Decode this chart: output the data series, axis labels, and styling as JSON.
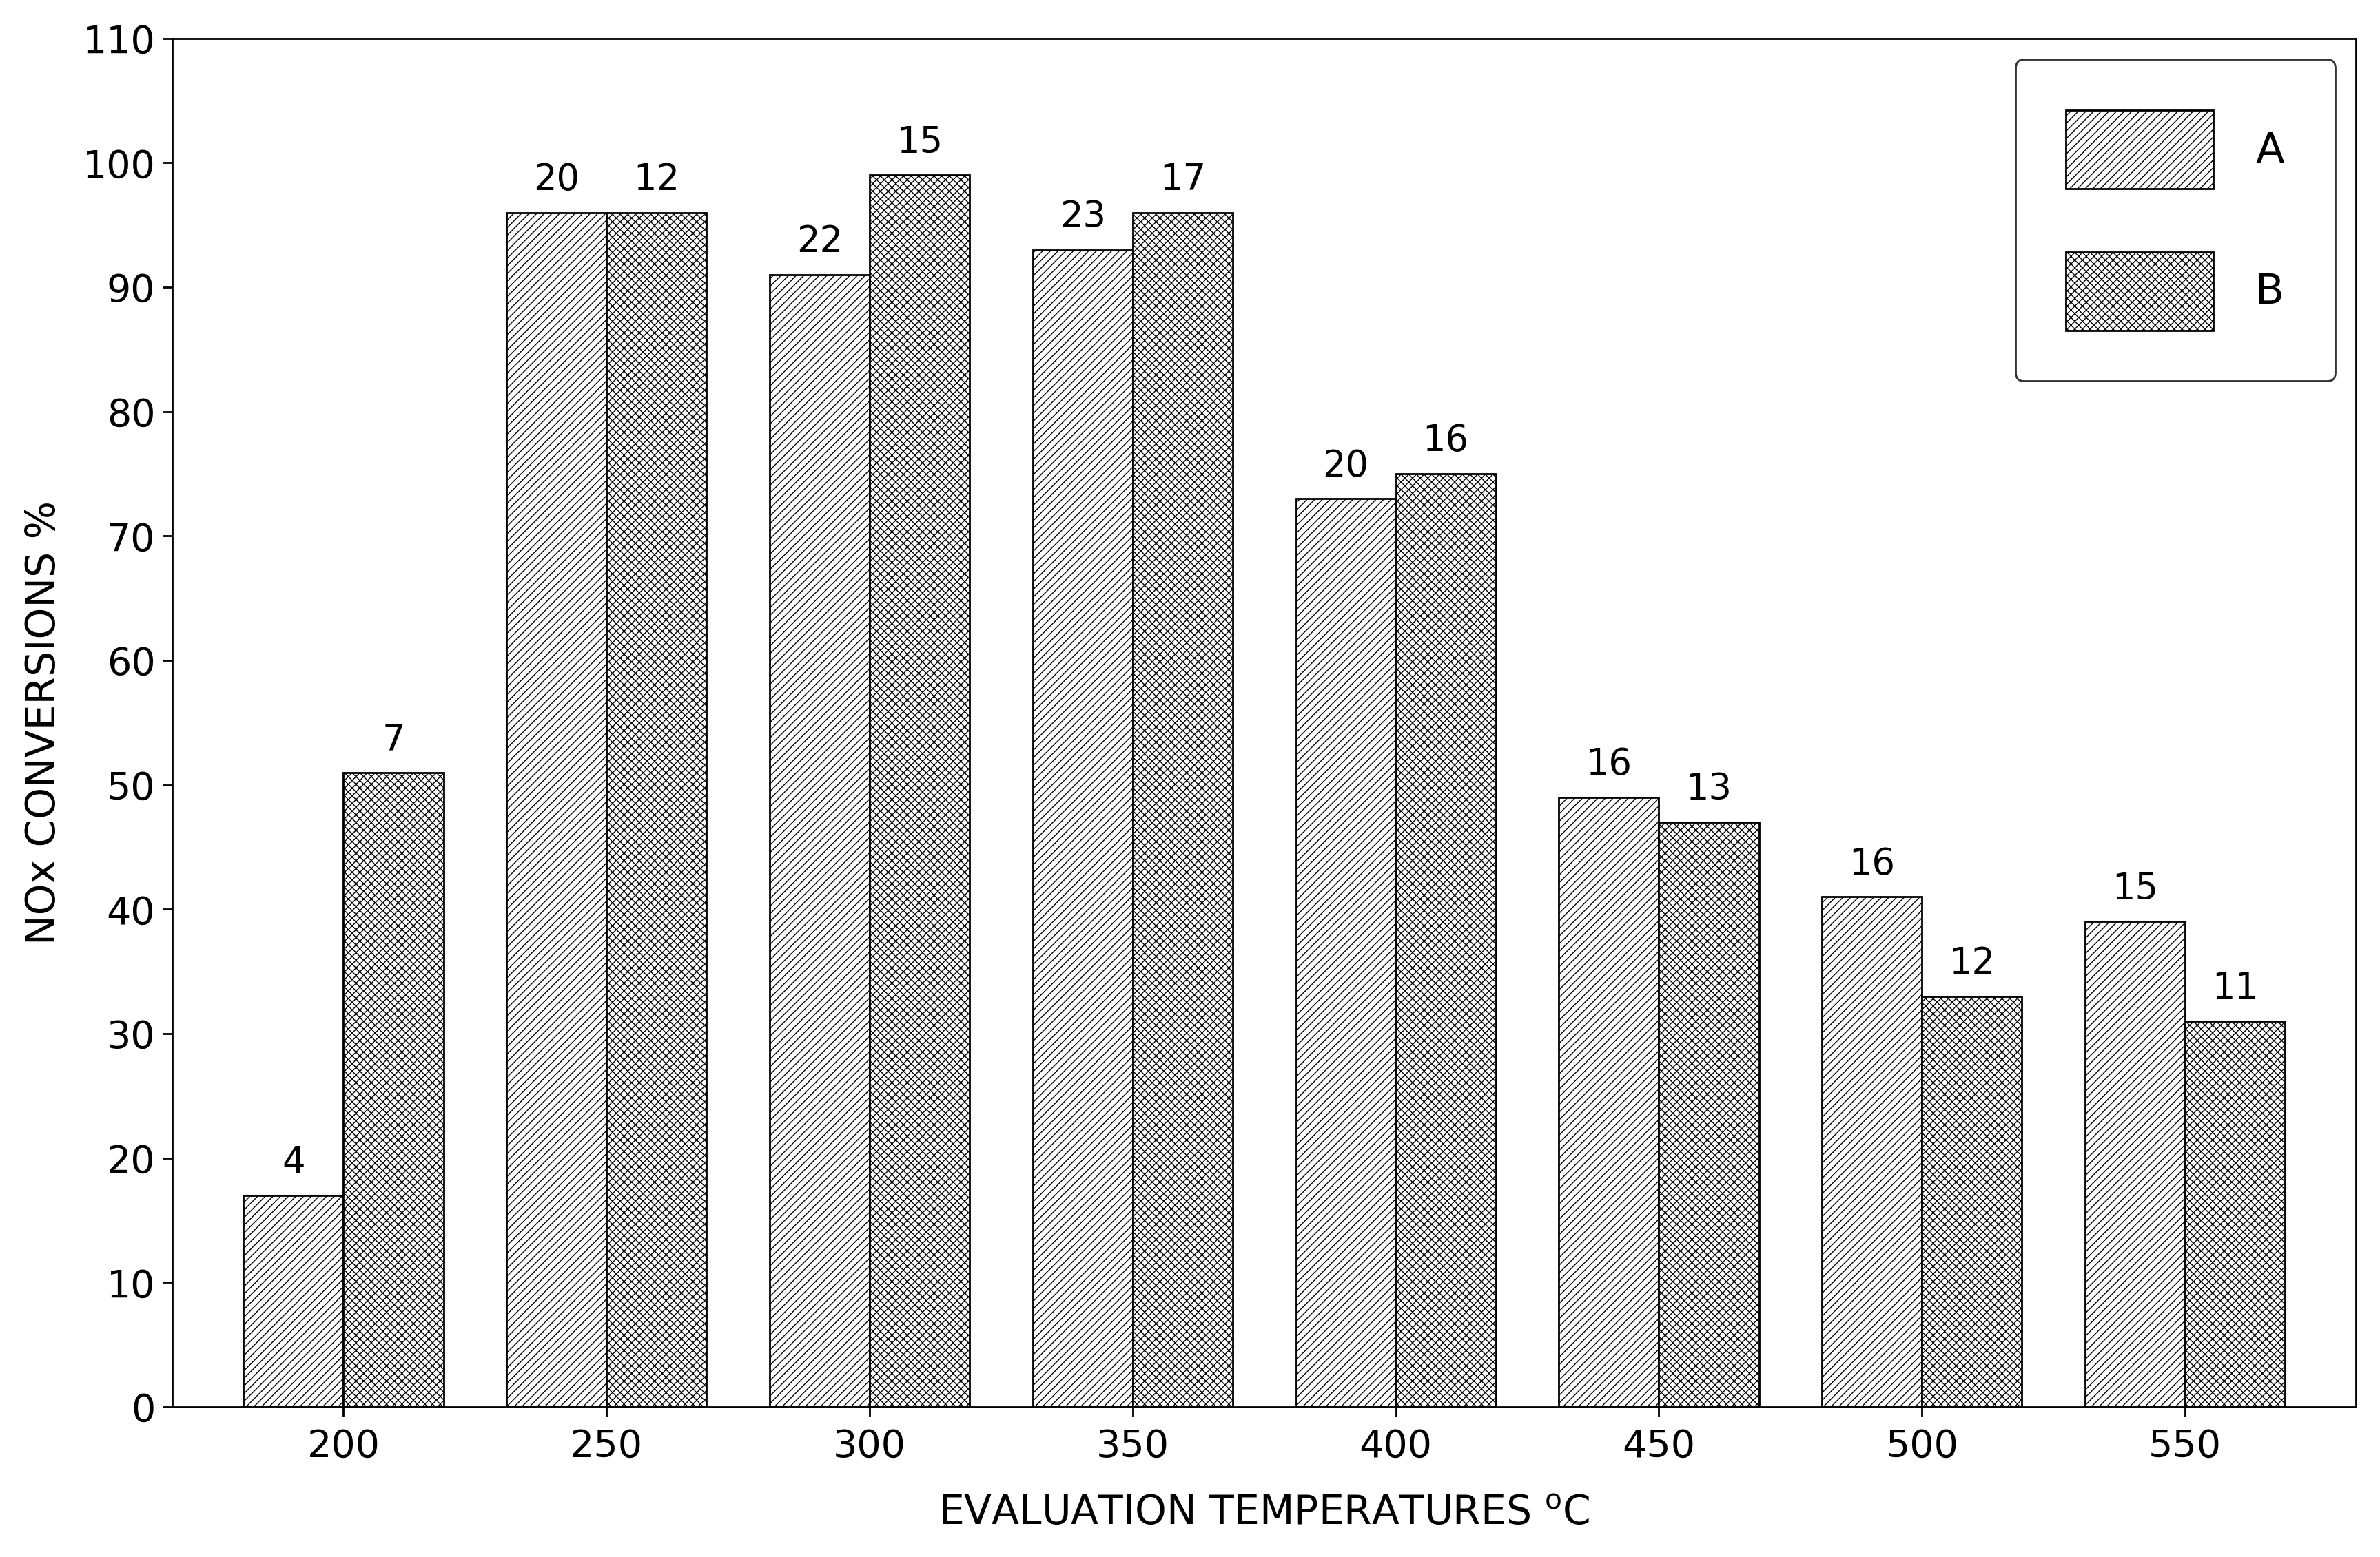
{
  "categories": [
    "200",
    "250",
    "300",
    "350",
    "400",
    "450",
    "500",
    "550"
  ],
  "series_A": [
    17,
    96,
    91,
    93,
    73,
    49,
    41,
    39
  ],
  "series_B": [
    51,
    96,
    99,
    96,
    75,
    47,
    33,
    31
  ],
  "labels_A": [
    4,
    20,
    22,
    23,
    20,
    16,
    16,
    15
  ],
  "labels_B": [
    7,
    12,
    15,
    17,
    16,
    13,
    12,
    11
  ],
  "ylabel": "NOx CONVERSIONS %",
  "xlabel_main": "EVALUATION TEMPERATURES ",
  "xlabel_super": "o",
  "xlabel_post": "C",
  "ylim": [
    0,
    110
  ],
  "yticks": [
    0,
    10,
    20,
    30,
    40,
    50,
    60,
    70,
    80,
    90,
    100,
    110
  ],
  "bar_width": 0.38,
  "hatch_A": "///",
  "hatch_B": "xxx",
  "color_A": "white",
  "color_B": "white",
  "edgecolor": "black",
  "legend_labels": [
    "A",
    "B"
  ],
  "background_color": "white",
  "label_fontsize": 42,
  "tick_fontsize": 40,
  "annotation_fontsize": 38,
  "legend_fontsize": 44,
  "linewidth": 2.0
}
